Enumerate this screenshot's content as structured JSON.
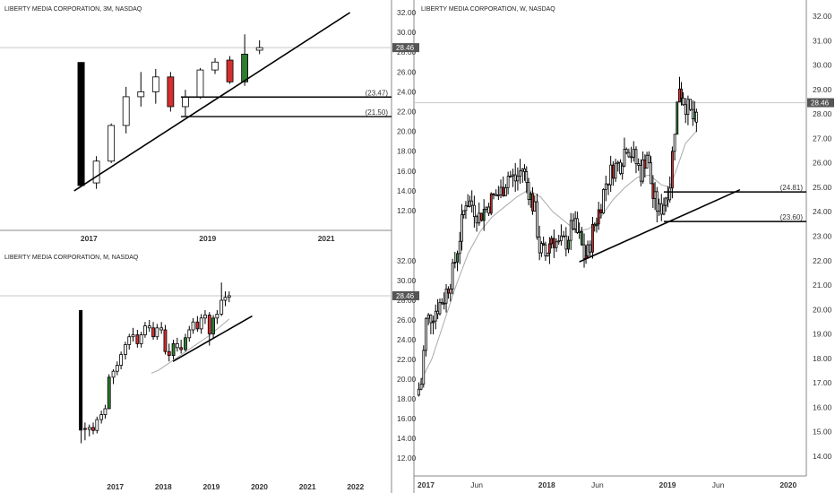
{
  "colors": {
    "up": "#2e7d32",
    "down": "#d32f2f",
    "neutral": "#ffffff",
    "wick": "#000000",
    "ma": "#aaaaaa",
    "badge": "#555555",
    "grid": "#c8c8c8"
  },
  "chart_data": [
    {
      "id": "quarterly",
      "type": "candlestick",
      "title": "LIBERTY MEDIA CORPORATION, 3M, NASDAQ",
      "last_price": "28.46",
      "ylim": [
        11,
        33.2
      ],
      "xlim": [
        2015.5,
        2022.1
      ],
      "yticks": [
        "12.00",
        "14.00",
        "16.00",
        "18.00",
        "20.00",
        "22.00",
        "24.00",
        "26.00",
        "28.00",
        "30.00",
        "32.00"
      ],
      "xticks": [
        {
          "label": "2017",
          "x": 2017
        },
        {
          "label": "2019",
          "x": 2019
        },
        {
          "label": "2021",
          "x": 2021
        }
      ],
      "candles": [
        {
          "x": 2016.875,
          "o": 14.5,
          "h": 27.0,
          "l": 14.5,
          "c": 27.0,
          "k": "bar"
        },
        {
          "x": 2017.125,
          "o": 14.8,
          "h": 17.5,
          "l": 14.2,
          "c": 17.0,
          "k": "neutral"
        },
        {
          "x": 2017.375,
          "o": 17.0,
          "h": 20.8,
          "l": 16.8,
          "c": 20.6,
          "k": "neutral"
        },
        {
          "x": 2017.625,
          "o": 20.6,
          "h": 24.5,
          "l": 19.8,
          "c": 23.5,
          "k": "neutral"
        },
        {
          "x": 2017.875,
          "o": 23.5,
          "h": 26.0,
          "l": 22.5,
          "c": 24.0,
          "k": "neutral"
        },
        {
          "x": 2018.125,
          "o": 24.0,
          "h": 26.3,
          "l": 22.8,
          "c": 25.5,
          "k": "neutral"
        },
        {
          "x": 2018.375,
          "o": 25.5,
          "h": 26.0,
          "l": 22.0,
          "c": 22.5,
          "k": "down"
        },
        {
          "x": 2018.625,
          "o": 22.5,
          "h": 24.2,
          "l": 21.5,
          "c": 23.5,
          "k": "neutral"
        },
        {
          "x": 2018.875,
          "o": 23.5,
          "h": 26.4,
          "l": 23.3,
          "c": 26.2,
          "k": "neutral"
        },
        {
          "x": 2019.125,
          "o": 26.2,
          "h": 27.4,
          "l": 25.8,
          "c": 27.0,
          "k": "neutral"
        },
        {
          "x": 2019.375,
          "o": 27.2,
          "h": 27.6,
          "l": 24.8,
          "c": 25.0,
          "k": "down"
        },
        {
          "x": 2019.625,
          "o": 25.0,
          "h": 29.8,
          "l": 24.6,
          "c": 27.8,
          "k": "up"
        },
        {
          "x": 2019.875,
          "o": 28.2,
          "h": 29.2,
          "l": 27.8,
          "c": 28.46,
          "k": "neutral"
        }
      ],
      "trendlines": [
        {
          "x1": 2016.75,
          "y1": 14.0,
          "x2": 2021.4,
          "y2": 32.0
        }
      ],
      "levels": [
        {
          "value": 23.47,
          "label": "(23.47)",
          "from": 2018.55
        },
        {
          "value": 21.5,
          "label": "(21.50)",
          "from": 2018.55
        }
      ]
    },
    {
      "id": "monthly",
      "type": "candlestick",
      "title": "LIBERTY MEDIA CORPORATION, M, NASDAQ",
      "last_price": "28.46",
      "ylim": [
        11,
        33.2
      ],
      "xlim": [
        2014.6,
        2022.75
      ],
      "yticks": [
        "12.00",
        "14.00",
        "16.00",
        "18.00",
        "20.00",
        "22.00",
        "24.00",
        "26.00",
        "28.00",
        "30.00",
        "32.00"
      ],
      "xticks": [
        {
          "label": "2017",
          "x": 2017
        },
        {
          "label": "2018",
          "x": 2018
        },
        {
          "label": "2019",
          "x": 2019
        },
        {
          "label": "2020",
          "x": 2020
        },
        {
          "label": "2021",
          "x": 2021
        },
        {
          "label": "2022",
          "x": 2022
        }
      ],
      "candles": [
        {
          "x": 2016.29,
          "o": 14.8,
          "h": 27.0,
          "l": 13.5,
          "c": 27.0,
          "k": "bar"
        },
        {
          "x": 2016.37,
          "o": 15.0,
          "h": 15.6,
          "l": 13.8,
          "c": 14.9,
          "k": "down"
        },
        {
          "x": 2016.46,
          "o": 14.9,
          "h": 15.4,
          "l": 14.2,
          "c": 15.1,
          "k": "neutral"
        },
        {
          "x": 2016.54,
          "o": 15.1,
          "h": 15.6,
          "l": 14.4,
          "c": 14.8,
          "k": "down"
        },
        {
          "x": 2016.62,
          "o": 14.8,
          "h": 16.2,
          "l": 14.5,
          "c": 15.9,
          "k": "neutral"
        },
        {
          "x": 2016.71,
          "o": 15.9,
          "h": 16.8,
          "l": 15.5,
          "c": 16.4,
          "k": "neutral"
        },
        {
          "x": 2016.79,
          "o": 16.4,
          "h": 17.4,
          "l": 16.0,
          "c": 17.0,
          "k": "neutral"
        },
        {
          "x": 2016.87,
          "o": 17.0,
          "h": 20.5,
          "l": 17.0,
          "c": 20.2,
          "k": "up"
        },
        {
          "x": 2016.96,
          "o": 20.2,
          "h": 21.0,
          "l": 19.5,
          "c": 20.8,
          "k": "neutral"
        },
        {
          "x": 2017.04,
          "o": 20.8,
          "h": 21.8,
          "l": 20.4,
          "c": 21.4,
          "k": "neutral"
        },
        {
          "x": 2017.12,
          "o": 21.4,
          "h": 22.8,
          "l": 21.0,
          "c": 22.5,
          "k": "neutral"
        },
        {
          "x": 2017.21,
          "o": 22.5,
          "h": 23.8,
          "l": 22.0,
          "c": 23.5,
          "k": "neutral"
        },
        {
          "x": 2017.29,
          "o": 23.5,
          "h": 24.6,
          "l": 23.0,
          "c": 24.3,
          "k": "neutral"
        },
        {
          "x": 2017.37,
          "o": 24.3,
          "h": 25.2,
          "l": 23.8,
          "c": 24.5,
          "k": "neutral"
        },
        {
          "x": 2017.46,
          "o": 24.5,
          "h": 25.0,
          "l": 23.2,
          "c": 23.6,
          "k": "down"
        },
        {
          "x": 2017.54,
          "o": 23.6,
          "h": 24.8,
          "l": 23.2,
          "c": 24.5,
          "k": "neutral"
        },
        {
          "x": 2017.62,
          "o": 24.5,
          "h": 25.8,
          "l": 24.2,
          "c": 25.4,
          "k": "neutral"
        },
        {
          "x": 2017.71,
          "o": 25.4,
          "h": 26.0,
          "l": 24.8,
          "c": 25.2,
          "k": "neutral"
        },
        {
          "x": 2017.79,
          "o": 25.2,
          "h": 25.8,
          "l": 24.0,
          "c": 24.3,
          "k": "down"
        },
        {
          "x": 2017.87,
          "o": 24.3,
          "h": 25.6,
          "l": 24.0,
          "c": 25.2,
          "k": "neutral"
        },
        {
          "x": 2017.96,
          "o": 25.2,
          "h": 25.8,
          "l": 24.6,
          "c": 25.0,
          "k": "neutral"
        },
        {
          "x": 2018.04,
          "o": 25.0,
          "h": 25.5,
          "l": 22.5,
          "c": 22.8,
          "k": "down"
        },
        {
          "x": 2018.12,
          "o": 22.8,
          "h": 23.6,
          "l": 21.8,
          "c": 22.4,
          "k": "down"
        },
        {
          "x": 2018.21,
          "o": 22.4,
          "h": 24.0,
          "l": 22.0,
          "c": 23.6,
          "k": "up"
        },
        {
          "x": 2018.29,
          "o": 23.6,
          "h": 24.2,
          "l": 22.8,
          "c": 23.2,
          "k": "neutral"
        },
        {
          "x": 2018.37,
          "o": 23.2,
          "h": 24.0,
          "l": 22.6,
          "c": 23.0,
          "k": "down"
        },
        {
          "x": 2018.46,
          "o": 23.0,
          "h": 24.6,
          "l": 22.8,
          "c": 24.2,
          "k": "up"
        },
        {
          "x": 2018.54,
          "o": 24.2,
          "h": 25.4,
          "l": 23.8,
          "c": 25.0,
          "k": "neutral"
        },
        {
          "x": 2018.62,
          "o": 25.0,
          "h": 26.2,
          "l": 24.6,
          "c": 25.8,
          "k": "neutral"
        },
        {
          "x": 2018.71,
          "o": 25.8,
          "h": 26.4,
          "l": 24.8,
          "c": 25.1,
          "k": "down"
        },
        {
          "x": 2018.79,
          "o": 25.1,
          "h": 26.6,
          "l": 24.6,
          "c": 26.2,
          "k": "neutral"
        },
        {
          "x": 2018.87,
          "o": 26.2,
          "h": 27.0,
          "l": 25.6,
          "c": 26.5,
          "k": "neutral"
        },
        {
          "x": 2018.96,
          "o": 26.5,
          "h": 26.8,
          "l": 23.4,
          "c": 24.6,
          "k": "down"
        },
        {
          "x": 2019.04,
          "o": 24.6,
          "h": 26.5,
          "l": 24.2,
          "c": 26.2,
          "k": "up"
        },
        {
          "x": 2019.12,
          "o": 26.2,
          "h": 27.0,
          "l": 25.6,
          "c": 26.6,
          "k": "neutral"
        },
        {
          "x": 2019.21,
          "o": 26.6,
          "h": 29.8,
          "l": 26.4,
          "c": 28.0,
          "k": "neutral"
        },
        {
          "x": 2019.29,
          "o": 28.0,
          "h": 28.9,
          "l": 27.4,
          "c": 28.3,
          "k": "neutral"
        },
        {
          "x": 2019.37,
          "o": 28.3,
          "h": 28.9,
          "l": 27.8,
          "c": 28.46,
          "k": "neutral"
        }
      ],
      "ma": [
        [
          2017.75,
          20.6
        ],
        [
          2017.9,
          20.9
        ],
        [
          2018.05,
          21.4
        ],
        [
          2018.2,
          21.9
        ],
        [
          2018.35,
          22.4
        ],
        [
          2018.5,
          22.9
        ],
        [
          2018.65,
          23.4
        ],
        [
          2018.8,
          23.9
        ],
        [
          2018.95,
          24.4
        ],
        [
          2019.1,
          25.0
        ],
        [
          2019.25,
          25.6
        ],
        [
          2019.37,
          26.1
        ]
      ],
      "trendlines": [
        {
          "x1": 2018.2,
          "y1": 21.8,
          "x2": 2019.85,
          "y2": 26.4
        }
      ]
    },
    {
      "id": "weekly",
      "type": "candlestick",
      "title": "LIBERTY MEDIA CORPORATION, W, NASDAQ",
      "last_price": "28.46",
      "ylim": [
        13.4,
        32.6
      ],
      "xlim": [
        2016.9,
        2020.15
      ],
      "yticks": [
        "14.00",
        "15.00",
        "16.00",
        "17.00",
        "18.00",
        "19.00",
        "20.00",
        "21.00",
        "22.00",
        "23.00",
        "24.00",
        "25.00",
        "26.00",
        "27.00",
        "28.00",
        "29.00",
        "30.00",
        "31.00",
        "32.00"
      ],
      "xticks": [
        {
          "label": "2017",
          "x": 2017,
          "b": 1
        },
        {
          "label": "Jun",
          "x": 2017.42,
          "b": 0
        },
        {
          "label": "2018",
          "x": 2018,
          "b": 1
        },
        {
          "label": "Jun",
          "x": 2018.42,
          "b": 0
        },
        {
          "label": "2019",
          "x": 2019,
          "b": 1
        },
        {
          "label": "Jun",
          "x": 2019.42,
          "b": 0
        },
        {
          "label": "2020",
          "x": 2020,
          "b": 1
        }
      ],
      "anchors": [
        [
          2016.92,
          16.5
        ],
        [
          2016.96,
          17.0
        ],
        [
          2017.0,
          19.5
        ],
        [
          2017.08,
          20.0
        ],
        [
          2017.15,
          20.5
        ],
        [
          2017.22,
          21.5
        ],
        [
          2017.28,
          23.0
        ],
        [
          2017.33,
          24.5
        ],
        [
          2017.38,
          24.3
        ],
        [
          2017.44,
          23.8
        ],
        [
          2017.5,
          24.2
        ],
        [
          2017.56,
          24.6
        ],
        [
          2017.62,
          24.8
        ],
        [
          2017.68,
          25.5
        ],
        [
          2017.74,
          25.3
        ],
        [
          2017.8,
          25.8
        ],
        [
          2017.85,
          24.9
        ],
        [
          2017.9,
          24.0
        ],
        [
          2017.94,
          22.5
        ],
        [
          2017.99,
          22.2
        ],
        [
          2018.04,
          23.0
        ],
        [
          2018.1,
          22.6
        ],
        [
          2018.16,
          22.8
        ],
        [
          2018.22,
          23.5
        ],
        [
          2018.27,
          22.9
        ],
        [
          2018.31,
          22.2
        ],
        [
          2018.34,
          22.3
        ],
        [
          2018.38,
          23.2
        ],
        [
          2018.43,
          24.0
        ],
        [
          2018.49,
          25.2
        ],
        [
          2018.55,
          25.8
        ],
        [
          2018.61,
          26.0
        ],
        [
          2018.66,
          26.8
        ],
        [
          2018.72,
          26.2
        ],
        [
          2018.78,
          25.6
        ],
        [
          2018.83,
          26.4
        ],
        [
          2018.88,
          24.6
        ],
        [
          2018.93,
          24.0
        ],
        [
          2018.97,
          24.4
        ],
        [
          2019.02,
          25.2
        ],
        [
          2019.06,
          27.5
        ],
        [
          2019.1,
          29.2
        ],
        [
          2019.13,
          28.6
        ],
        [
          2019.17,
          28.2
        ],
        [
          2019.21,
          27.8
        ],
        [
          2019.24,
          27.5
        ]
      ],
      "ma": [
        [
          2016.95,
          17.0
        ],
        [
          2017.05,
          18.0
        ],
        [
          2017.15,
          19.5
        ],
        [
          2017.25,
          21.0
        ],
        [
          2017.35,
          22.3
        ],
        [
          2017.45,
          23.2
        ],
        [
          2017.55,
          23.8
        ],
        [
          2017.65,
          24.2
        ],
        [
          2017.75,
          24.6
        ],
        [
          2017.85,
          24.9
        ],
        [
          2017.95,
          24.6
        ],
        [
          2018.05,
          24.0
        ],
        [
          2018.15,
          23.6
        ],
        [
          2018.25,
          23.2
        ],
        [
          2018.35,
          23.3
        ],
        [
          2018.45,
          23.8
        ],
        [
          2018.55,
          24.5
        ],
        [
          2018.65,
          25.0
        ],
        [
          2018.75,
          25.4
        ],
        [
          2018.85,
          25.5
        ],
        [
          2018.95,
          25.1
        ],
        [
          2019.02,
          25.0
        ],
        [
          2019.08,
          25.8
        ],
        [
          2019.15,
          26.8
        ],
        [
          2019.24,
          27.3
        ]
      ],
      "trendlines": [
        {
          "x1": 2018.27,
          "y1": 21.95,
          "x2": 2019.6,
          "y2": 24.9
        }
      ],
      "levels": [
        {
          "value": 24.81,
          "label": "(24.81)",
          "from": 2018.97
        },
        {
          "value": 23.6,
          "label": "(23.60)",
          "from": 2018.97
        }
      ]
    }
  ]
}
